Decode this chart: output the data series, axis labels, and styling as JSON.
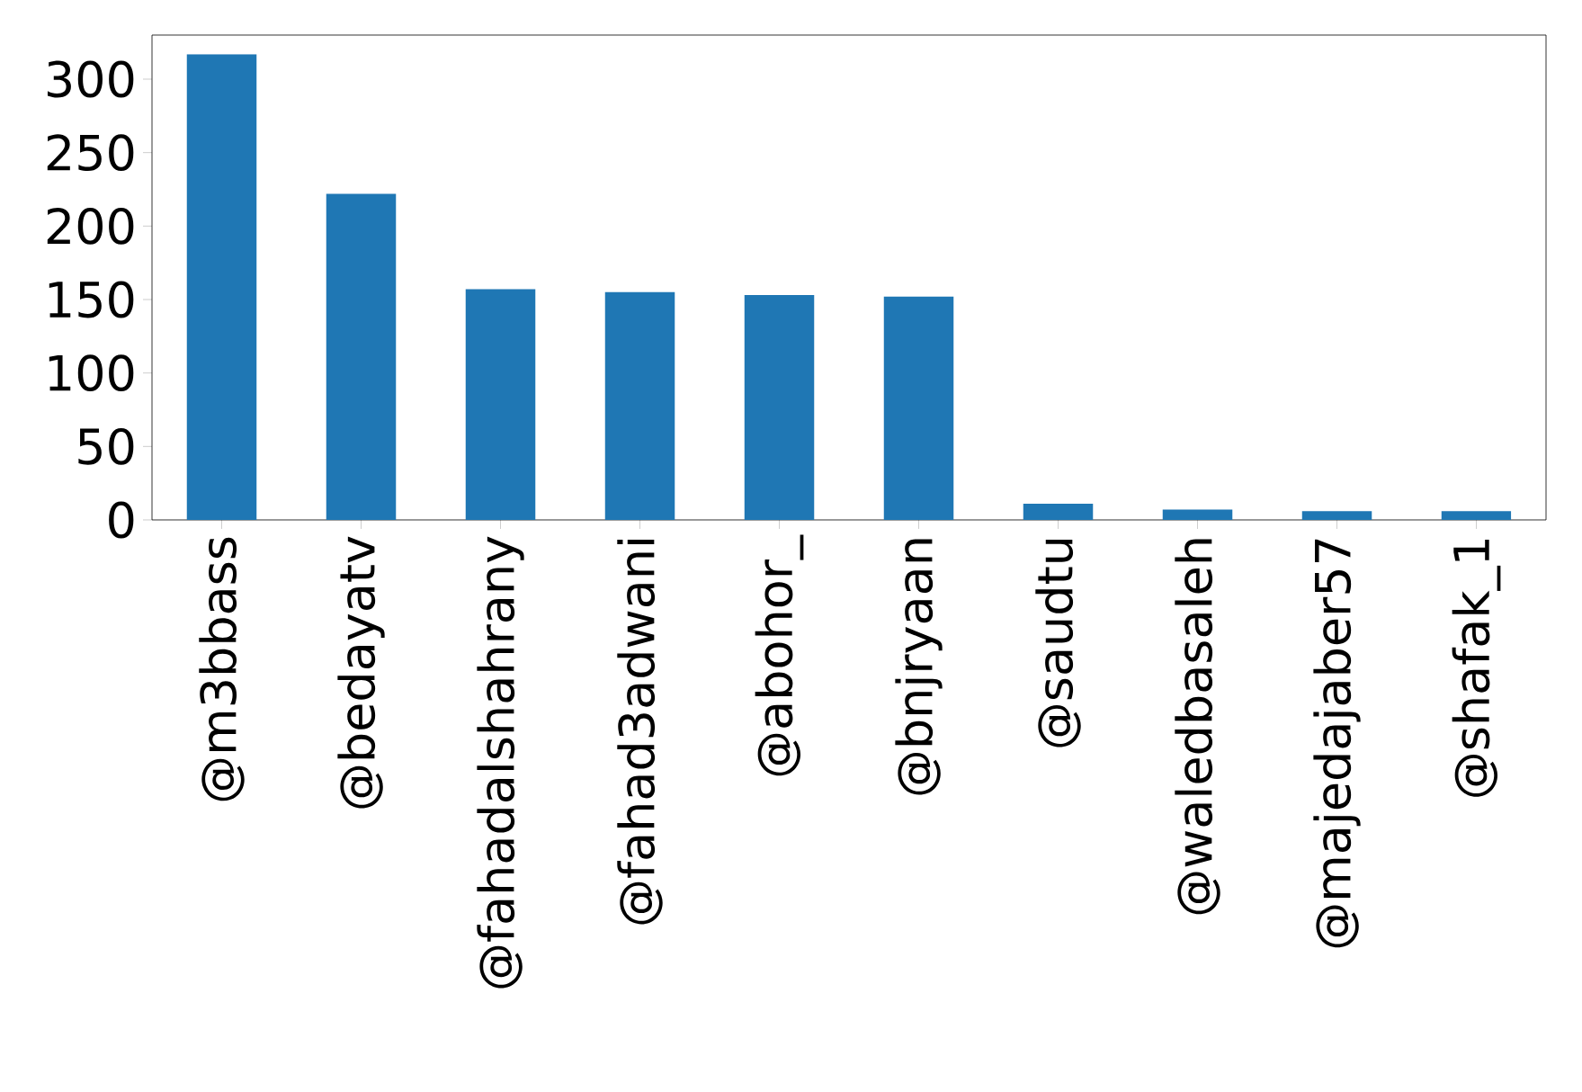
{
  "chart_data": {
    "type": "bar",
    "categories": [
      "@m3bbass",
      "@bedayatv",
      "@fahadalshahrany",
      "@fahad3adwani",
      "@abohor_",
      "@bnjryaan",
      "@saudtu",
      "@waledbasaleh",
      "@majedajaber57",
      "@shafak_1"
    ],
    "values": [
      317,
      222,
      157,
      155,
      153,
      152,
      11,
      7,
      6,
      6
    ],
    "color": "#1f77b4",
    "ylim": [
      0,
      330
    ],
    "yticks": [
      0,
      50,
      100,
      150,
      200,
      250,
      300
    ],
    "grid": false
  }
}
